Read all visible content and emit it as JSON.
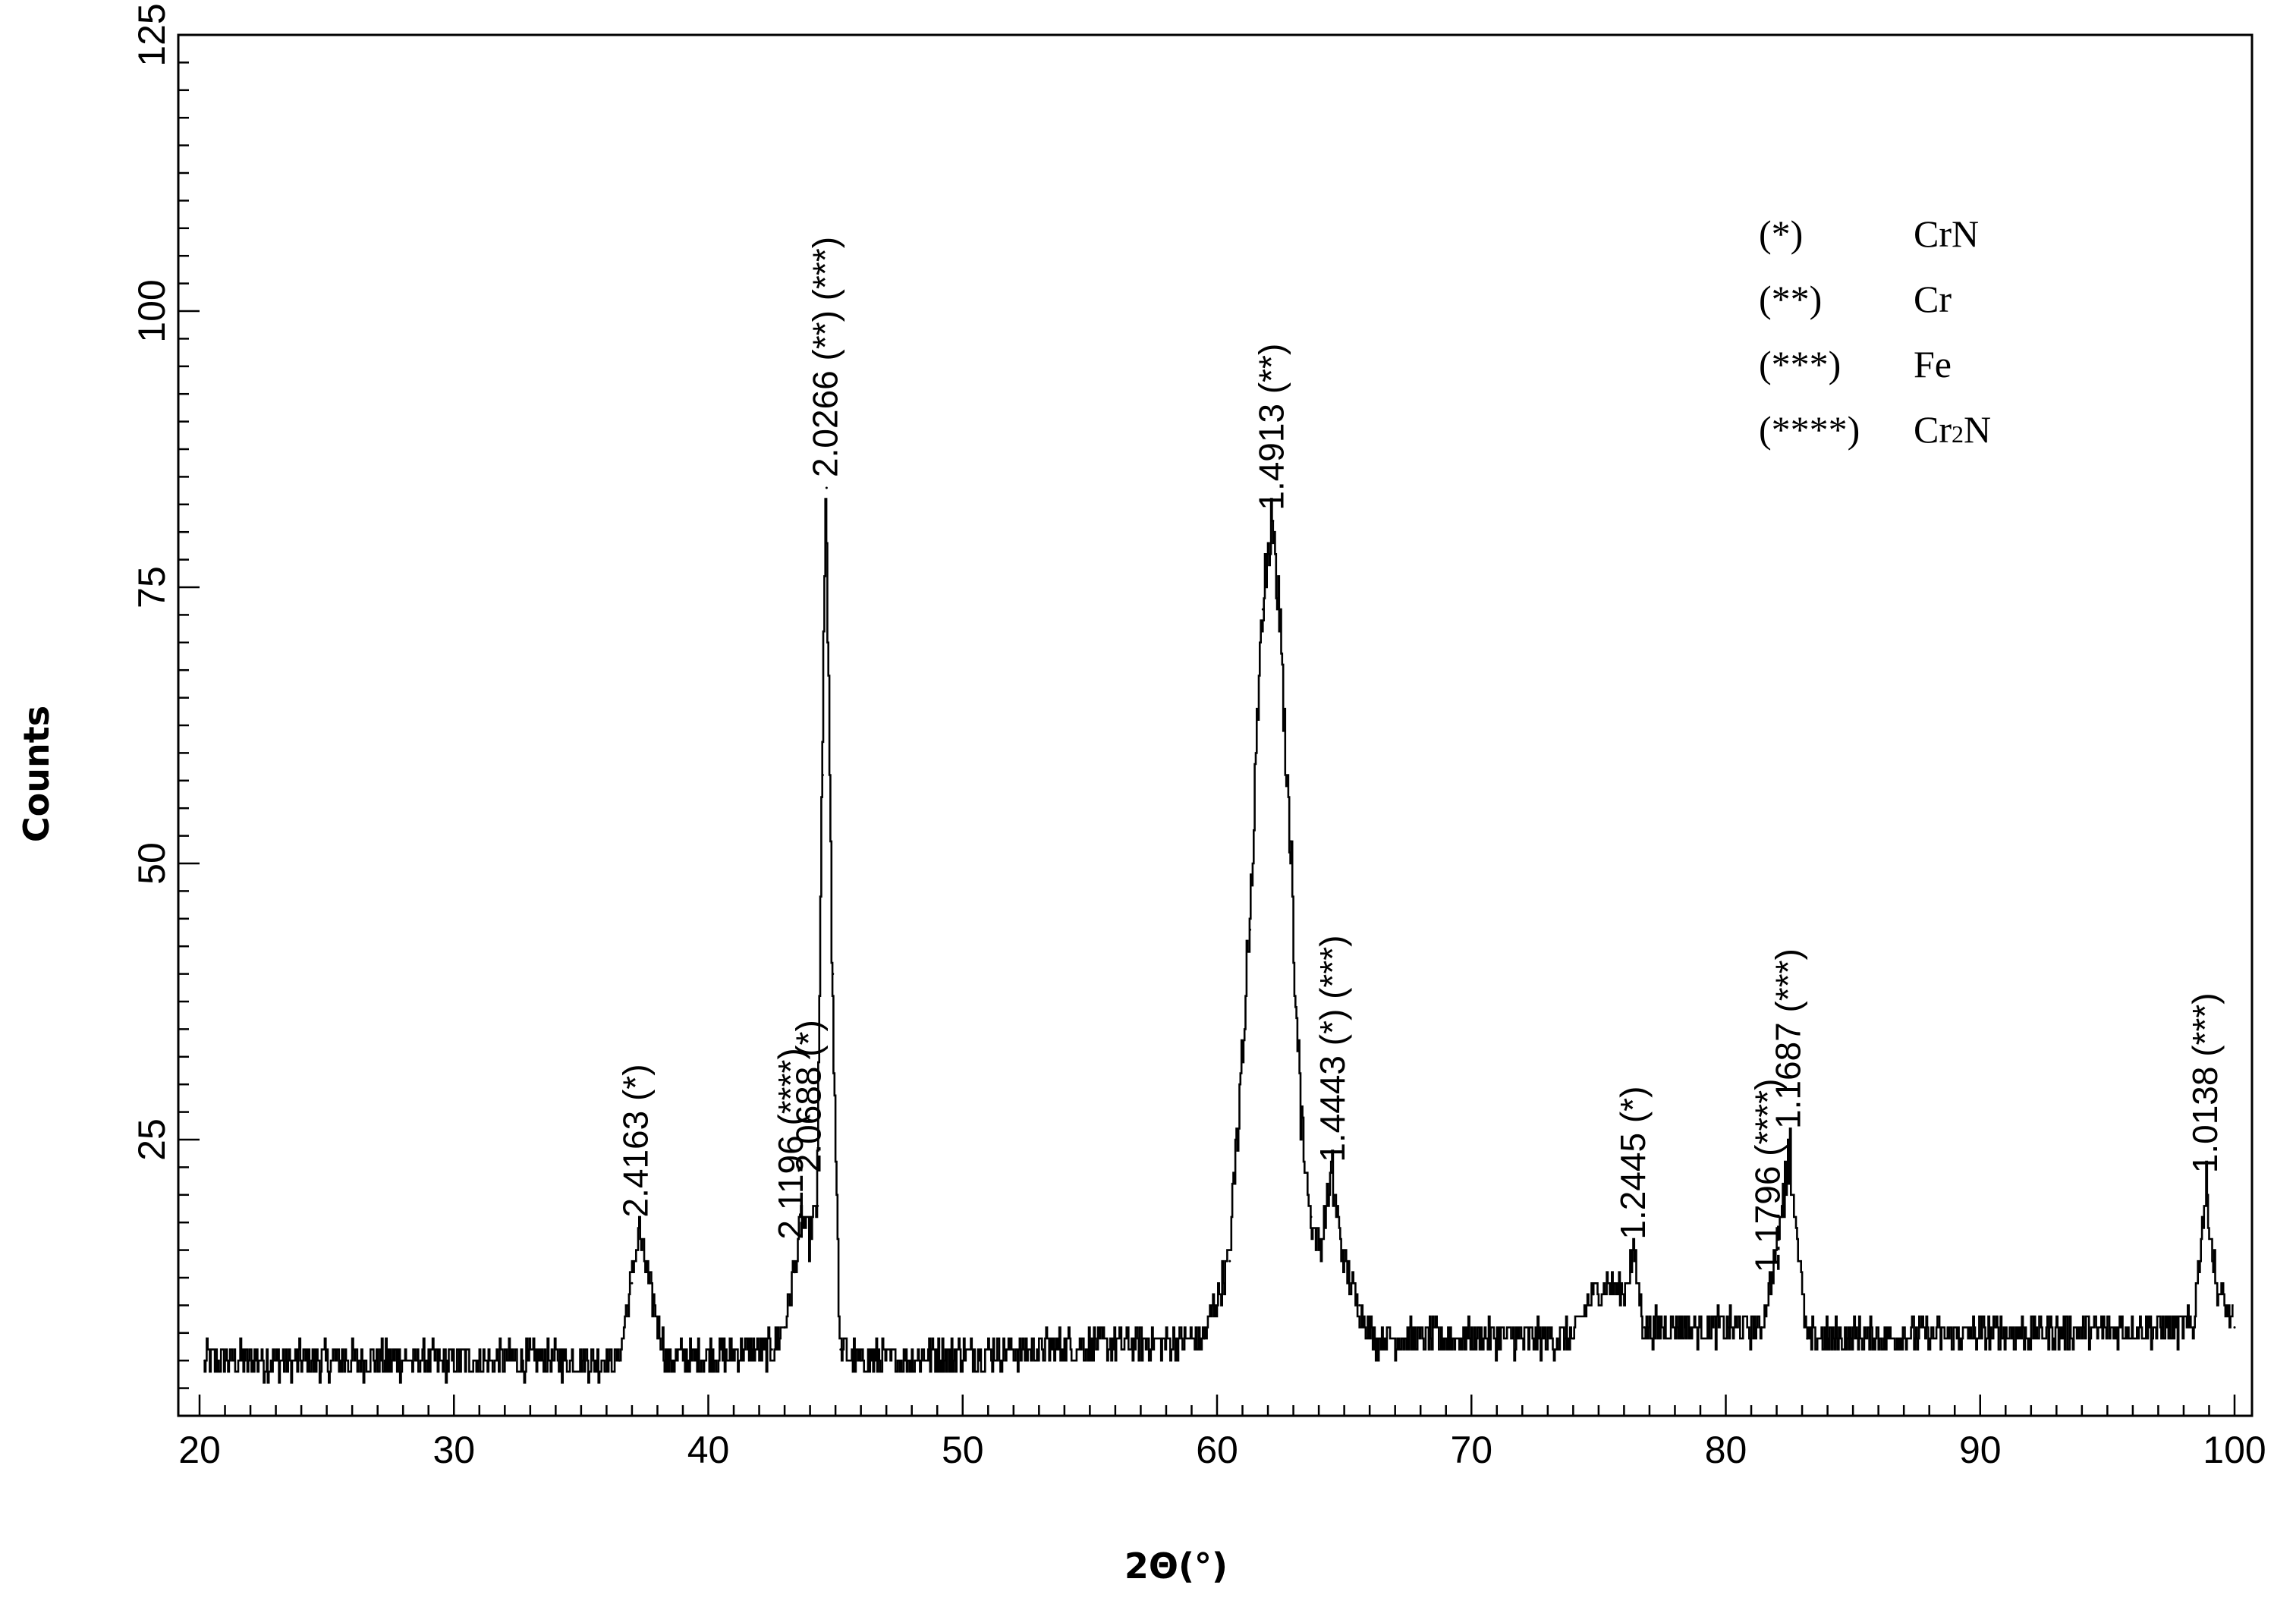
{
  "chart_data": {
    "type": "line",
    "title": "",
    "xlabel": "2Θ(°)",
    "ylabel": "Counts",
    "xlim": [
      20,
      100
    ],
    "ylim": [
      0,
      125
    ],
    "xticks": [
      20,
      30,
      40,
      50,
      60,
      70,
      80,
      90,
      100
    ],
    "yticks": [
      25,
      50,
      75,
      100,
      125
    ],
    "grid": false,
    "legend_position": "top-right",
    "legend": [
      {
        "marker": "(*)",
        "phase": "CrN"
      },
      {
        "marker": "(**)",
        "phase": "Cr"
      },
      {
        "marker": "(***)",
        "phase": "Fe"
      },
      {
        "marker": "(****)",
        "phase": "Cr2N"
      }
    ],
    "baseline": {
      "low": 4,
      "high": 8
    },
    "series": [
      {
        "x": [
          20.2,
          36.5,
          37.0,
          37.3,
          37.7,
          38.4,
          42.5,
          43.0,
          43.4,
          43.7,
          44.0,
          44.3,
          44.5,
          44.65,
          44.9,
          45.2,
          46.0,
          59.5,
          60.5,
          61.3,
          61.8,
          62.2,
          62.5,
          62.9,
          63.3,
          63.7,
          64.1,
          64.5,
          65.0,
          65.6,
          66.2,
          74.0,
          74.8,
          75.5,
          76.0,
          76.4,
          76.8,
          81.4,
          81.8,
          82.2,
          82.5,
          82.8,
          83.2,
          98.4,
          98.9,
          99.3,
          100.0
        ],
        "y": [
          5,
          5,
          12,
          17,
          12,
          5,
          6,
          8,
          13,
          18,
          16,
          19,
          58,
          84,
          40,
          6,
          5,
          7,
          14,
          44,
          73,
          81,
          71,
          52,
          28,
          18,
          15,
          22,
          14,
          10,
          7,
          7,
          11,
          12,
          11,
          15,
          8,
          8,
          12,
          18,
          25,
          17,
          7,
          8,
          21,
          12,
          8
        ]
      }
    ],
    "peak_labels": [
      {
        "x": 37.2,
        "y": 17,
        "text": "2.4163 (*)"
      },
      {
        "x": 43.3,
        "y": 15,
        "text": "2.1196 (****)"
      },
      {
        "x": 44.0,
        "y": 21,
        "text": "2.0688 (*)"
      },
      {
        "x": 44.65,
        "y": 84,
        "text": "2.0266 (**) (***)"
      },
      {
        "x": 62.2,
        "y": 81,
        "text": "1.4913 (**)"
      },
      {
        "x": 64.6,
        "y": 22,
        "text": "1.4443 (*) (***)"
      },
      {
        "x": 76.4,
        "y": 15,
        "text": "1.2445 (*)"
      },
      {
        "x": 81.7,
        "y": 12,
        "text": "1.1796 (****)"
      },
      {
        "x": 82.5,
        "y": 25,
        "text": "1.1687 (***)"
      },
      {
        "x": 98.9,
        "y": 21,
        "text": "1.0138 (***)"
      }
    ]
  }
}
